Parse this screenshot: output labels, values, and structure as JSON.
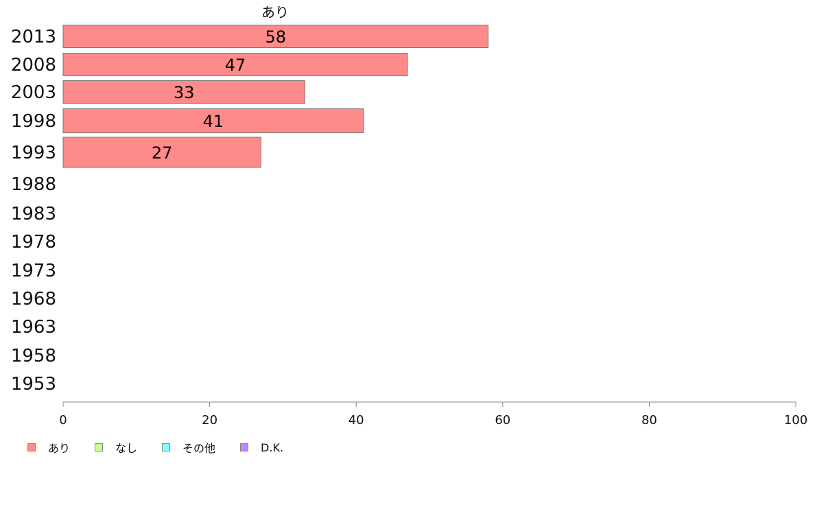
{
  "chart_data": {
    "type": "bar",
    "orientation": "horizontal",
    "title": "あり",
    "categories": [
      "2013",
      "2008",
      "2003",
      "1998",
      "1993",
      "1988",
      "1983",
      "1978",
      "1973",
      "1968",
      "1963",
      "1958",
      "1953"
    ],
    "series": [
      {
        "name": "あり",
        "color": "#ff8a8a",
        "values": [
          58,
          47,
          33,
          41,
          27,
          null,
          null,
          null,
          null,
          null,
          null,
          null,
          null
        ]
      }
    ],
    "data_labels": [
      "58",
      "47",
      "33",
      "41",
      "27"
    ],
    "xlim": [
      0,
      100
    ],
    "xticks": [
      "0",
      "20",
      "40",
      "60",
      "80",
      "100"
    ],
    "grid": false,
    "legend": {
      "placement": "bottom-left",
      "items": [
        {
          "label": "あり",
          "color": "#ff8a8a"
        },
        {
          "label": "なし",
          "color": "#ccff88"
        },
        {
          "label": "その他",
          "color": "#88ffff"
        },
        {
          "label": "D.K.",
          "color": "#bb88ff"
        }
      ]
    }
  }
}
